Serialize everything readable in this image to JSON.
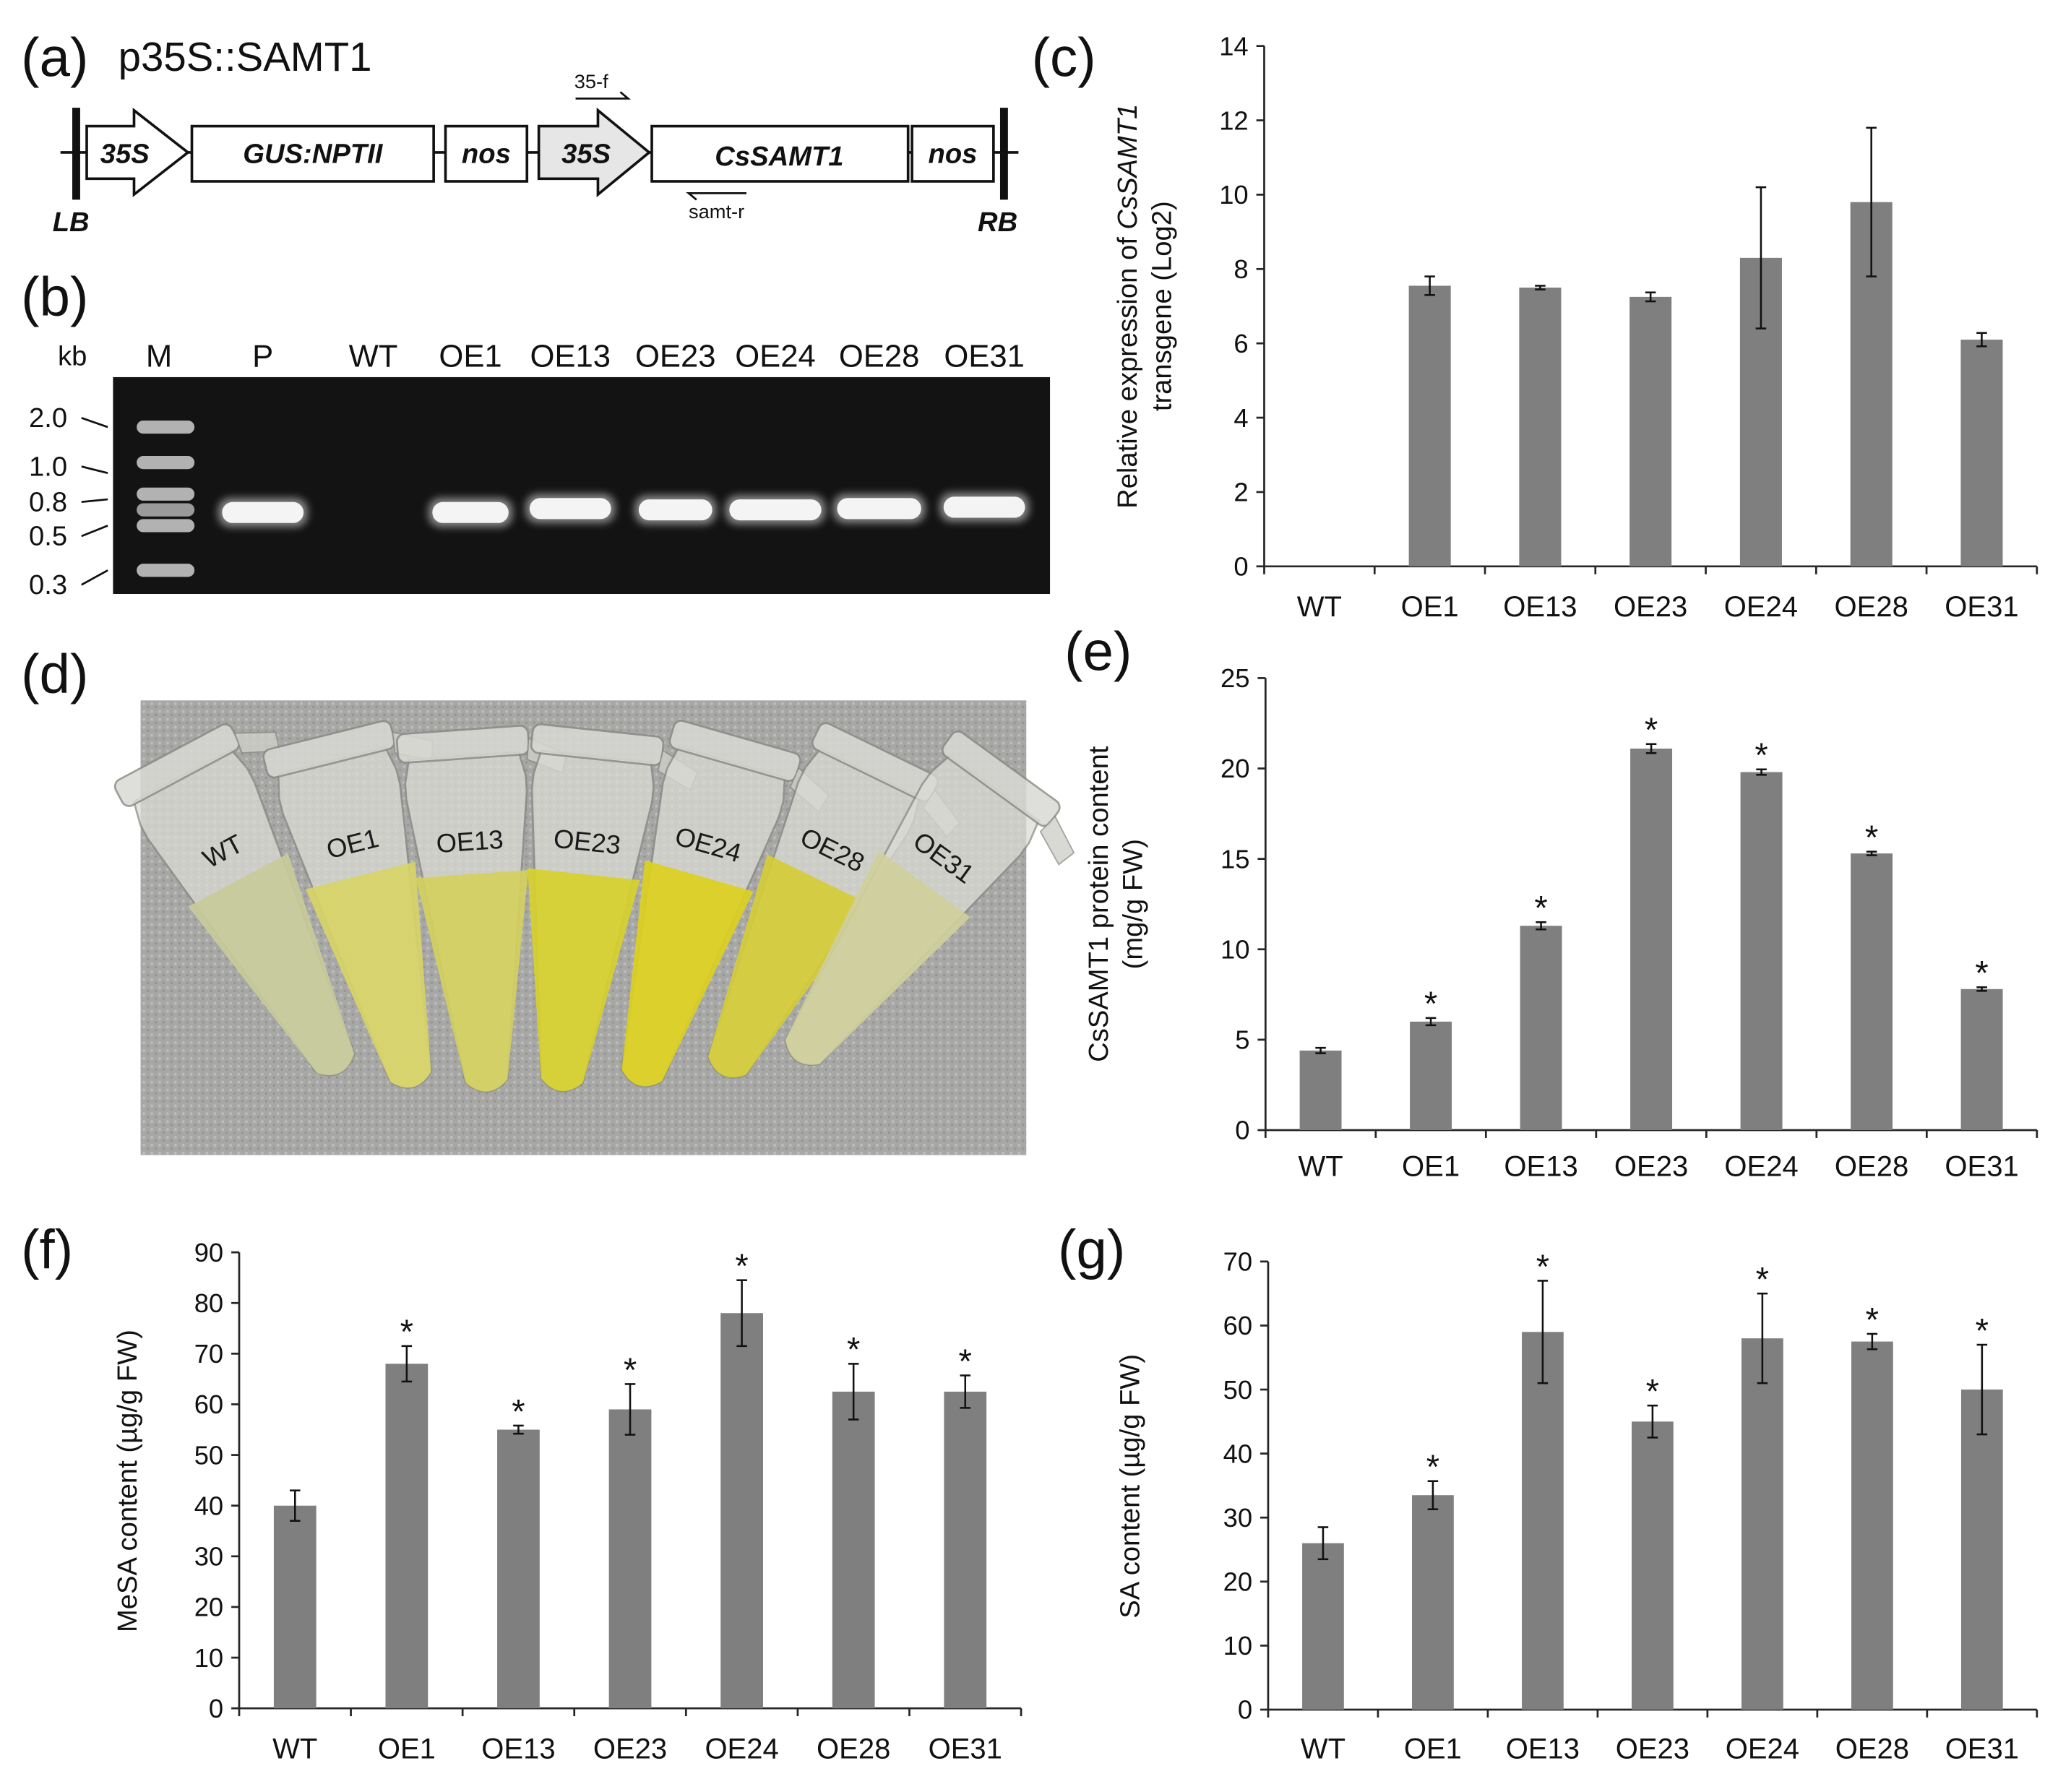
{
  "panel_labels": {
    "a": "(a)",
    "b": "(b)",
    "c": "(c)",
    "d": "(d)",
    "e": "(e)",
    "f": "(f)",
    "g": "(g)"
  },
  "construct": {
    "title": "p35S::SAMT1",
    "lb": "LB",
    "rb": "RB",
    "elements": [
      "35S",
      "GUS:NPTII",
      "nos",
      "35S",
      "CsSAMT1",
      "nos"
    ],
    "forward_primer": "35-f",
    "reverse_primer": "samt-r"
  },
  "gel": {
    "unit": "kb",
    "lanes": [
      "M",
      "P",
      "WT",
      "OE1",
      "OE13",
      "OE23",
      "OE24",
      "OE28",
      "OE31"
    ],
    "marker_sizes": [
      "2.0",
      "1.0",
      "0.8",
      "0.5",
      "0.3"
    ],
    "band_present": [
      true,
      true,
      false,
      true,
      true,
      true,
      true,
      true,
      true
    ]
  },
  "tubes": {
    "labels": [
      "WT",
      "OE1",
      "OE13",
      "OE23",
      "OE24",
      "OE28",
      "OE31"
    ],
    "colors": [
      "#c8cb9a",
      "#d8d466",
      "#d4d060",
      "#d7d12c",
      "#dcd01e",
      "#d5cd38",
      "#cfcf9c"
    ]
  },
  "colors": {
    "bar": "#7f7f7f",
    "axis": "#262626"
  },
  "chart_data": [
    {
      "id": "c",
      "type": "bar",
      "categories": [
        "WT",
        "OE1",
        "OE13",
        "OE23",
        "OE24",
        "OE28",
        "OE31"
      ],
      "values": [
        0,
        7.55,
        7.5,
        7.25,
        8.3,
        9.8,
        6.1
      ],
      "errors": [
        0,
        0.25,
        0.05,
        0.12,
        1.9,
        2.0,
        0.18
      ],
      "stars": [
        false,
        false,
        false,
        false,
        false,
        false,
        false
      ],
      "ylabel_prefix": "Relative expression of ",
      "ylabel_gene": "CsSAMT1",
      "ylabel_line2": "transgene (Log2)",
      "ylim": [
        0,
        14
      ],
      "yticks": [
        0,
        2,
        4,
        6,
        8,
        10,
        12,
        14
      ]
    },
    {
      "id": "e",
      "type": "bar",
      "categories": [
        "WT",
        "OE1",
        "OE13",
        "OE23",
        "OE24",
        "OE28",
        "OE31"
      ],
      "values": [
        4.4,
        6.0,
        11.3,
        21.1,
        19.8,
        15.3,
        7.8
      ],
      "errors": [
        0.15,
        0.2,
        0.2,
        0.25,
        0.15,
        0.1,
        0.1
      ],
      "stars": [
        false,
        true,
        true,
        true,
        true,
        true,
        true
      ],
      "ylabel_line1": "CsSAMT1 protein content",
      "ylabel_line2": "(mg/g FW)",
      "ylim": [
        0,
        25
      ],
      "yticks": [
        0,
        5,
        10,
        15,
        20,
        25
      ]
    },
    {
      "id": "f",
      "type": "bar",
      "categories": [
        "WT",
        "OE1",
        "OE13",
        "OE23",
        "OE24",
        "OE28",
        "OE31"
      ],
      "values": [
        40,
        68,
        55,
        59,
        78,
        62.5,
        62.5
      ],
      "errors": [
        3,
        3.5,
        0.8,
        5,
        6.5,
        5.5,
        3.2
      ],
      "stars": [
        false,
        true,
        true,
        true,
        true,
        true,
        true
      ],
      "ylabel_line1": "MeSA content (µg/g FW)",
      "ylim": [
        0,
        90
      ],
      "yticks": [
        0,
        10,
        20,
        30,
        40,
        50,
        60,
        70,
        80,
        90
      ]
    },
    {
      "id": "g",
      "type": "bar",
      "categories": [
        "WT",
        "OE1",
        "OE13",
        "OE23",
        "OE24",
        "OE28",
        "OE31"
      ],
      "values": [
        26,
        33.5,
        59,
        45,
        58,
        57.5,
        50
      ],
      "errors": [
        2.5,
        2.2,
        8,
        2.5,
        7,
        1.2,
        7
      ],
      "stars": [
        false,
        true,
        true,
        true,
        true,
        true,
        true
      ],
      "ylabel_line1": "SA content (µg/g FW)",
      "ylim": [
        0,
        70
      ],
      "yticks": [
        0,
        10,
        20,
        30,
        40,
        50,
        60,
        70
      ]
    }
  ]
}
